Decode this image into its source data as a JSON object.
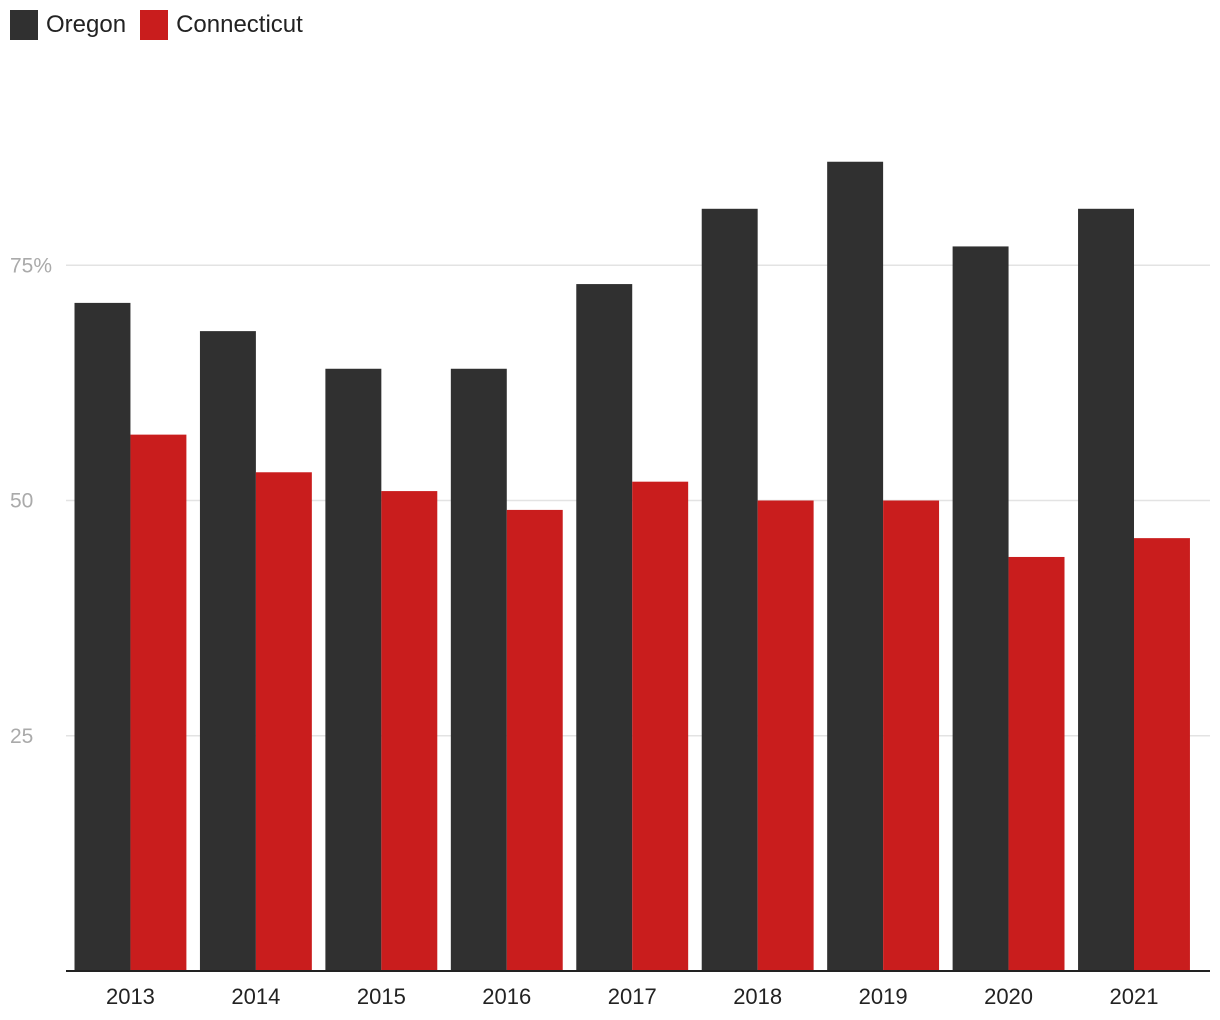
{
  "chart_data": {
    "type": "bar",
    "categories": [
      "2013",
      "2014",
      "2015",
      "2016",
      "2017",
      "2018",
      "2019",
      "2020",
      "2021"
    ],
    "series": [
      {
        "name": "Oregon",
        "color": "#303030",
        "values": [
          71,
          68,
          64,
          64,
          73,
          81,
          86,
          77,
          81
        ]
      },
      {
        "name": "Connecticut",
        "color": "#c91d1d",
        "values": [
          57,
          53,
          51,
          49,
          52,
          50,
          50,
          44,
          46
        ]
      }
    ],
    "yticks": [
      {
        "value": 25,
        "label": "25"
      },
      {
        "value": 50,
        "label": "50"
      },
      {
        "value": 75,
        "label": "75%"
      }
    ],
    "ylim": [
      0,
      100
    ],
    "grid": true,
    "legend_position": "top-left",
    "title": "",
    "xlabel": "",
    "ylabel": ""
  }
}
